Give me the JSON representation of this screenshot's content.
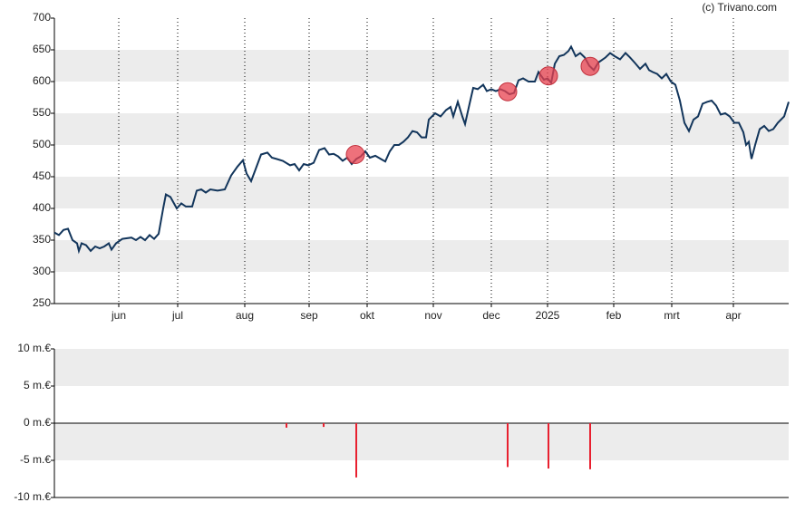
{
  "annotation": "(c) Trivano.com",
  "chart_data": [
    {
      "type": "line",
      "x": [
        0,
        5,
        10,
        15,
        20,
        25,
        27,
        30,
        35,
        40,
        45,
        50,
        55,
        60,
        63,
        68,
        75,
        85,
        90,
        95,
        100,
        105,
        110,
        115,
        120,
        123,
        128,
        135,
        140,
        145,
        152,
        157,
        162,
        167,
        172,
        180,
        188,
        195,
        202,
        208,
        212,
        217,
        222,
        228,
        235,
        240,
        245,
        252,
        260,
        265,
        270,
        275,
        280,
        286,
        292,
        298,
        303,
        308,
        313,
        318,
        323,
        328,
        333,
        338,
        343,
        348,
        354,
        360,
        365,
        370,
        375,
        380,
        385,
        390,
        395,
        400,
        405,
        410,
        413,
        420,
        426,
        432,
        437,
        440,
        445,
        450,
        453,
        458,
        462,
        467,
        473,
        477,
        482,
        487,
        492,
        497,
        502,
        507,
        512,
        517,
        523,
        530,
        534,
        540,
        544,
        548,
        552,
        557,
        562,
        567,
        570,
        575,
        580,
        585,
        590,
        595,
        600,
        608,
        613,
        618,
        624,
        630,
        635,
        640,
        646,
        652,
        656,
        660,
        665,
        670,
        675,
        680,
        685,
        690,
        695,
        700,
        705,
        710,
        715,
        720,
        725,
        730,
        735,
        740,
        745,
        750,
        755,
        760,
        763,
        766,
        769,
        773,
        778,
        783,
        788,
        793,
        798,
        805,
        810
      ],
      "series": [
        {
          "color": "#12355b",
          "values": [
            362,
            358,
            366,
            368,
            350,
            345,
            333,
            345,
            342,
            333,
            340,
            337,
            340,
            345,
            335,
            345,
            352,
            354,
            350,
            355,
            350,
            358,
            352,
            360,
            400,
            422,
            418,
            400,
            408,
            403,
            403,
            428,
            430,
            425,
            430,
            428,
            430,
            452,
            466,
            476,
            455,
            443,
            462,
            485,
            488,
            480,
            478,
            475,
            468,
            470,
            460,
            470,
            468,
            472,
            492,
            495,
            485,
            486,
            482,
            475,
            480,
            470,
            478,
            482,
            490,
            480,
            483,
            478,
            474,
            490,
            500,
            500,
            505,
            512,
            522,
            520,
            512,
            512,
            540,
            550,
            545,
            555,
            560,
            545,
            568,
            545,
            533,
            565,
            590,
            588,
            595,
            585,
            588,
            585,
            588,
            585,
            580,
            582,
            602,
            605,
            600,
            600,
            615,
            603,
            605,
            598,
            628,
            640,
            642,
            648,
            655,
            640,
            645,
            638,
            625,
            618,
            630,
            638,
            645,
            640,
            635,
            645,
            638,
            630,
            620,
            628,
            618,
            615,
            612,
            605,
            612,
            600,
            595,
            570,
            535,
            522,
            540,
            545,
            565,
            568,
            570,
            562,
            548,
            550,
            545,
            535,
            535,
            520,
            500,
            505,
            478,
            500,
            525,
            530,
            522,
            525,
            535,
            545,
            568
          ]
        }
      ],
      "points": {
        "x": [
          332,
          500,
          545,
          591
        ],
        "values": [
          485,
          584,
          609,
          624
        ],
        "color": "#e8414f"
      },
      "xlim": [
        0,
        810
      ],
      "xticks": [
        {
          "value": 71,
          "label": "jun"
        },
        {
          "value": 136,
          "label": "jul"
        },
        {
          "value": 210,
          "label": "aug"
        },
        {
          "value": 281,
          "label": "sep"
        },
        {
          "value": 345,
          "label": "okt"
        },
        {
          "value": 418,
          "label": "nov"
        },
        {
          "value": 482,
          "label": "dec"
        },
        {
          "value": 544,
          "label": "2025"
        },
        {
          "value": 617,
          "label": "feb"
        },
        {
          "value": 681,
          "label": "mrt"
        },
        {
          "value": 749,
          "label": "apr"
        }
      ],
      "ylim": [
        250,
        700
      ],
      "yticks": [
        250,
        300,
        350,
        400,
        450,
        500,
        550,
        600,
        650,
        700
      ],
      "grid": true
    },
    {
      "type": "bar",
      "x": [
        256,
        297,
        333,
        500,
        545,
        591
      ],
      "values": [
        -0.6,
        -0.5,
        -7.3,
        -5.9,
        -6.1,
        -6.2
      ],
      "color": "#e8202f",
      "xlim": [
        0,
        810
      ],
      "ylim": [
        -10,
        10
      ],
      "yticks": [
        {
          "value": -10,
          "label": "-10 m.€"
        },
        {
          "value": -5,
          "label": "-5 m.€"
        },
        {
          "value": 0,
          "label": "0 m.€"
        },
        {
          "value": 5,
          "label": "5 m.€"
        },
        {
          "value": 10,
          "label": "10 m.€"
        }
      ],
      "grid": true
    }
  ]
}
